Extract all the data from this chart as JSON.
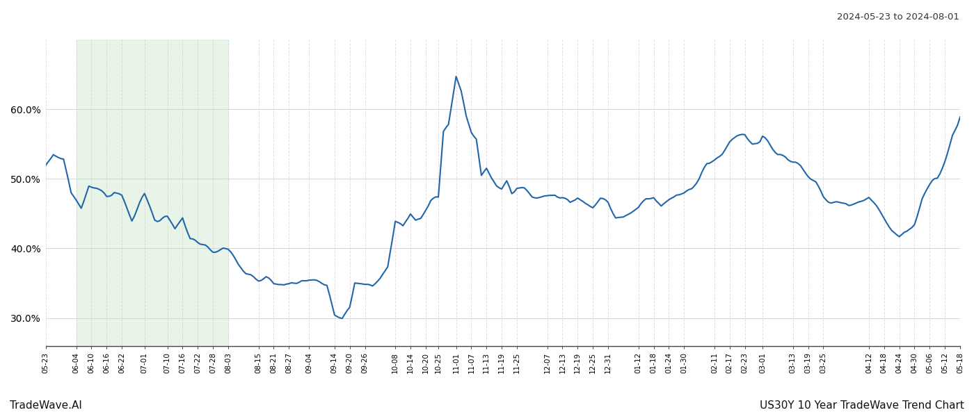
{
  "title_top_right": "2024-05-23 to 2024-08-01",
  "title_bottom_right": "US30Y 10 Year TradeWave Trend Chart",
  "title_bottom_left": "TradeWave.AI",
  "line_color": "#2266aa",
  "line_width": 1.5,
  "background_color": "#ffffff",
  "grid_color": "#cccccc",
  "shade_color": "#d4ecd4",
  "shade_alpha": 0.55,
  "ylim": [
    26.0,
    70.0
  ],
  "yticks": [
    30.0,
    40.0,
    50.0,
    60.0
  ],
  "ytick_labels": [
    "30.0%",
    "40.0%",
    "50.0%",
    "60.0%"
  ],
  "tick_date_strs": [
    "2023-05-23",
    "2023-06-04",
    "2023-06-10",
    "2023-06-16",
    "2023-06-22",
    "2023-07-01",
    "2023-07-10",
    "2023-07-16",
    "2023-07-22",
    "2023-07-28",
    "2023-08-03",
    "2023-08-15",
    "2023-08-21",
    "2023-08-27",
    "2023-09-04",
    "2023-09-14",
    "2023-09-20",
    "2023-09-26",
    "2023-10-08",
    "2023-10-14",
    "2023-10-20",
    "2023-10-25",
    "2023-11-01",
    "2023-11-07",
    "2023-11-13",
    "2023-11-19",
    "2023-11-25",
    "2023-12-07",
    "2023-12-13",
    "2023-12-19",
    "2023-12-25",
    "2023-12-31",
    "2024-01-12",
    "2024-01-18",
    "2024-01-24",
    "2024-01-30",
    "2024-02-11",
    "2024-02-17",
    "2024-02-23",
    "2024-03-01",
    "2024-03-13",
    "2024-03-19",
    "2024-03-25",
    "2024-04-12",
    "2024-04-18",
    "2024-04-24",
    "2024-04-30",
    "2024-05-06",
    "2024-05-12",
    "2024-05-18"
  ],
  "tick_labels": [
    "05-23",
    "06-04",
    "06-10",
    "06-16",
    "06-22",
    "07-01",
    "07-10",
    "07-16",
    "07-22",
    "07-28",
    "08-03",
    "08-15",
    "08-21",
    "08-27",
    "09-04",
    "09-14",
    "09-20",
    "09-26",
    "10-08",
    "10-14",
    "10-20",
    "10-25",
    "11-01",
    "11-07",
    "11-13",
    "11-19",
    "11-25",
    "12-07",
    "12-13",
    "12-19",
    "12-25",
    "12-31",
    "01-12",
    "01-18",
    "01-24",
    "01-30",
    "02-11",
    "02-17",
    "02-23",
    "03-01",
    "03-13",
    "03-19",
    "03-25",
    "04-12",
    "04-18",
    "04-24",
    "04-30",
    "05-06",
    "05-12",
    "05-18"
  ],
  "shade_start": "2023-06-04",
  "shade_end": "2023-08-03",
  "start_date": "2023-05-23",
  "end_date": "2024-05-18"
}
